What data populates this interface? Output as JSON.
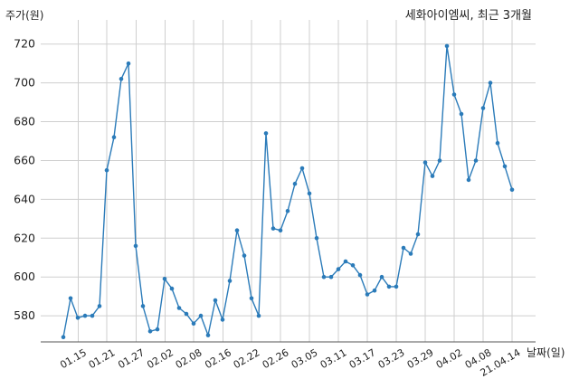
{
  "chart_data": {
    "type": "line",
    "title": "세화아이엠씨, 최근 3개월",
    "xlabel": "날짜(일)",
    "ylabel": "주가(원)",
    "ylim": [
      565,
      725
    ],
    "yticks": [
      580,
      600,
      620,
      640,
      660,
      680,
      700,
      720
    ],
    "grid": true,
    "color": "#2b7bb9",
    "xticklabels": [
      "01.15",
      "01.21",
      "01.27",
      "02.02",
      "02.08",
      "02.16",
      "02.22",
      "02.26",
      "03.05",
      "03.11",
      "03.17",
      "03.23",
      "03.29",
      "04.02",
      "04.08",
      "21.04.14"
    ],
    "series": [
      {
        "values": [
          569,
          589,
          579,
          580,
          580,
          585,
          655,
          672,
          702,
          710,
          616,
          585,
          572,
          573,
          599,
          594,
          584,
          581,
          576,
          580,
          570,
          588,
          578,
          598,
          624,
          611,
          589,
          580,
          674,
          625,
          624,
          634,
          648,
          656,
          643,
          620,
          600,
          600,
          604,
          608,
          606,
          601,
          591,
          593,
          600,
          595,
          595,
          615,
          612,
          622,
          659,
          652,
          660,
          719,
          694,
          684,
          650,
          660,
          687,
          700,
          669,
          657,
          645
        ]
      }
    ]
  }
}
